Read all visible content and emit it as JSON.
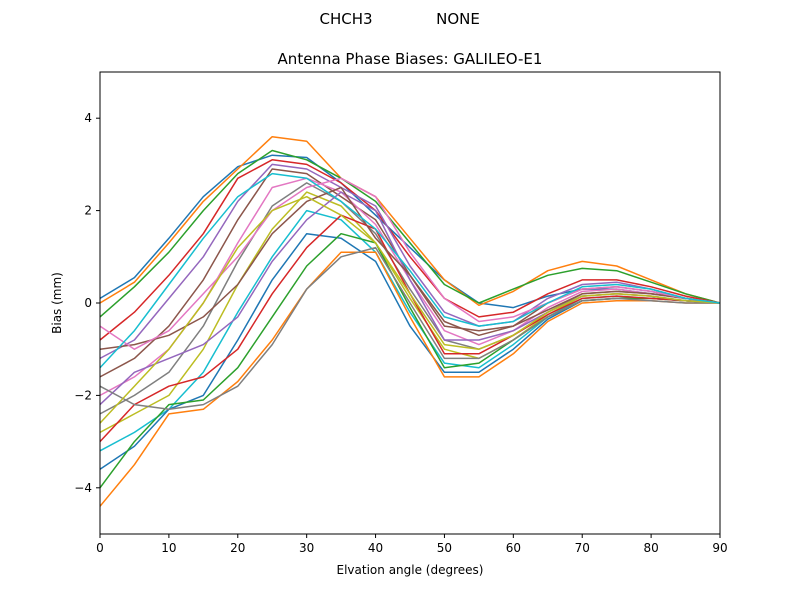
{
  "header": {
    "station": "CHCH3",
    "antenna": "NONE"
  },
  "chart_data": {
    "type": "line",
    "title": "Antenna Phase Biases: GALILEO-E1",
    "xlabel": "Elvation angle (degrees)",
    "ylabel": "Bias (mm)",
    "xlim": [
      0,
      90
    ],
    "ylim": [
      -5,
      5
    ],
    "xticks": [
      0,
      10,
      20,
      30,
      40,
      50,
      60,
      70,
      80,
      90
    ],
    "yticks": [
      -4,
      -2,
      0,
      2,
      4
    ],
    "grid": false,
    "legend": "none",
    "x": [
      0,
      5,
      10,
      15,
      20,
      25,
      30,
      35,
      40,
      45,
      50,
      55,
      60,
      65,
      70,
      75,
      80,
      85,
      90
    ],
    "colors": [
      "#1f77b4",
      "#ff7f0e",
      "#2ca02c",
      "#d62728",
      "#9467bd",
      "#8c564b",
      "#e377c2",
      "#7f7f7f",
      "#bcbd22",
      "#17becf"
    ],
    "series": [
      {
        "values": [
          0.1,
          0.55,
          1.4,
          2.3,
          2.95,
          3.2,
          3.15,
          2.6,
          1.9,
          1.2,
          0.5,
          0.0,
          -0.1,
          0.15,
          0.3,
          0.3,
          0.2,
          0.1,
          0.0
        ]
      },
      {
        "values": [
          0.0,
          0.45,
          1.3,
          2.2,
          2.9,
          3.6,
          3.5,
          2.7,
          2.3,
          1.4,
          0.5,
          -0.05,
          0.25,
          0.7,
          0.9,
          0.8,
          0.5,
          0.2,
          0.0
        ]
      },
      {
        "values": [
          -0.3,
          0.35,
          1.1,
          2.0,
          2.8,
          3.3,
          3.1,
          2.7,
          2.2,
          1.3,
          0.4,
          0.0,
          0.3,
          0.6,
          0.75,
          0.7,
          0.45,
          0.2,
          0.0
        ]
      },
      {
        "values": [
          -0.8,
          -0.2,
          0.6,
          1.5,
          2.7,
          3.1,
          3.0,
          2.6,
          2.0,
          1.0,
          0.1,
          -0.3,
          -0.2,
          0.2,
          0.5,
          0.5,
          0.35,
          0.15,
          0.0
        ]
      },
      {
        "values": [
          -1.2,
          -0.8,
          0.1,
          1.0,
          2.2,
          3.0,
          2.9,
          2.5,
          2.1,
          0.8,
          -0.2,
          -0.5,
          -0.4,
          0.1,
          0.4,
          0.45,
          0.3,
          0.1,
          0.0
        ]
      },
      {
        "values": [
          -1.6,
          -1.2,
          -0.5,
          0.5,
          1.8,
          2.9,
          2.8,
          2.3,
          1.8,
          0.6,
          -0.4,
          -0.7,
          -0.5,
          0.0,
          0.3,
          0.35,
          0.25,
          0.1,
          0.0
        ]
      },
      {
        "values": [
          -2.0,
          -1.6,
          -1.0,
          0.0,
          1.3,
          2.5,
          2.7,
          2.4,
          1.7,
          0.5,
          -0.6,
          -0.9,
          -0.6,
          -0.1,
          0.25,
          0.3,
          0.2,
          0.1,
          0.0
        ]
      },
      {
        "values": [
          -2.4,
          -2.0,
          -1.5,
          -0.5,
          0.9,
          2.1,
          2.6,
          2.2,
          1.5,
          0.3,
          -0.8,
          -1.0,
          -0.7,
          -0.2,
          0.2,
          0.25,
          0.2,
          0.1,
          0.0
        ]
      },
      {
        "values": [
          -2.8,
          -2.4,
          -2.0,
          -1.0,
          0.4,
          1.6,
          2.4,
          2.1,
          1.3,
          0.1,
          -1.0,
          -1.2,
          -0.8,
          -0.25,
          0.15,
          0.2,
          0.15,
          0.05,
          0.0
        ]
      },
      {
        "values": [
          -3.2,
          -2.8,
          -2.3,
          -1.5,
          -0.2,
          1.0,
          2.0,
          1.8,
          1.1,
          -0.2,
          -1.3,
          -1.4,
          -0.9,
          -0.3,
          0.1,
          0.15,
          0.1,
          0.05,
          0.0
        ]
      },
      {
        "values": [
          -3.6,
          -3.1,
          -2.3,
          -2.0,
          -0.8,
          0.5,
          1.5,
          1.4,
          0.9,
          -0.5,
          -1.5,
          -1.5,
          -1.0,
          -0.35,
          0.05,
          0.1,
          0.1,
          0.05,
          0.0
        ]
      },
      {
        "values": [
          -4.4,
          -3.5,
          -2.4,
          -2.3,
          -1.7,
          -0.8,
          0.3,
          1.1,
          1.1,
          -0.3,
          -1.6,
          -1.6,
          -1.1,
          -0.4,
          0.0,
          0.05,
          0.05,
          0.0,
          0.0
        ]
      },
      {
        "values": [
          -4.0,
          -3.0,
          -2.2,
          -2.1,
          -1.4,
          -0.3,
          0.8,
          1.5,
          1.3,
          -0.1,
          -1.4,
          -1.3,
          -0.8,
          -0.3,
          0.05,
          0.1,
          0.1,
          0.05,
          0.0
        ]
      },
      {
        "values": [
          -3.0,
          -2.2,
          -1.8,
          -1.6,
          -1.0,
          0.2,
          1.2,
          1.9,
          1.6,
          0.2,
          -1.1,
          -1.1,
          -0.7,
          -0.25,
          0.1,
          0.15,
          0.1,
          0.05,
          0.0
        ]
      },
      {
        "values": [
          -2.2,
          -1.5,
          -1.2,
          -0.9,
          -0.3,
          0.9,
          1.8,
          2.4,
          2.0,
          0.5,
          -0.8,
          -0.8,
          -0.6,
          -0.2,
          0.15,
          0.2,
          0.15,
          0.05,
          0.0
        ]
      },
      {
        "values": [
          -1.0,
          -0.9,
          -0.7,
          -0.3,
          0.4,
          1.5,
          2.2,
          2.5,
          1.4,
          0.6,
          -0.5,
          -0.6,
          -0.5,
          -0.15,
          0.2,
          0.25,
          0.2,
          0.1,
          0.0
        ]
      },
      {
        "values": [
          -0.5,
          -1.0,
          -0.6,
          0.2,
          1.0,
          2.0,
          2.5,
          2.7,
          2.3,
          1.1,
          0.1,
          -0.4,
          -0.3,
          0.0,
          0.3,
          0.35,
          0.25,
          0.1,
          0.0
        ]
      },
      {
        "values": [
          -1.8,
          -2.2,
          -2.3,
          -2.2,
          -1.8,
          -0.9,
          0.3,
          1.0,
          1.2,
          0.0,
          -1.2,
          -1.2,
          -0.8,
          -0.3,
          0.05,
          0.1,
          0.05,
          0.0,
          0.0
        ]
      },
      {
        "values": [
          -2.6,
          -1.8,
          -1.0,
          0.0,
          1.2,
          2.0,
          2.3,
          1.9,
          1.3,
          0.2,
          -0.9,
          -1.0,
          -0.7,
          -0.2,
          0.15,
          0.2,
          0.15,
          0.05,
          0.0
        ]
      },
      {
        "values": [
          -1.4,
          -0.6,
          0.4,
          1.4,
          2.3,
          2.8,
          2.7,
          2.2,
          1.6,
          0.7,
          -0.3,
          -0.5,
          -0.4,
          0.0,
          0.35,
          0.4,
          0.3,
          0.1,
          0.0
        ]
      }
    ]
  }
}
